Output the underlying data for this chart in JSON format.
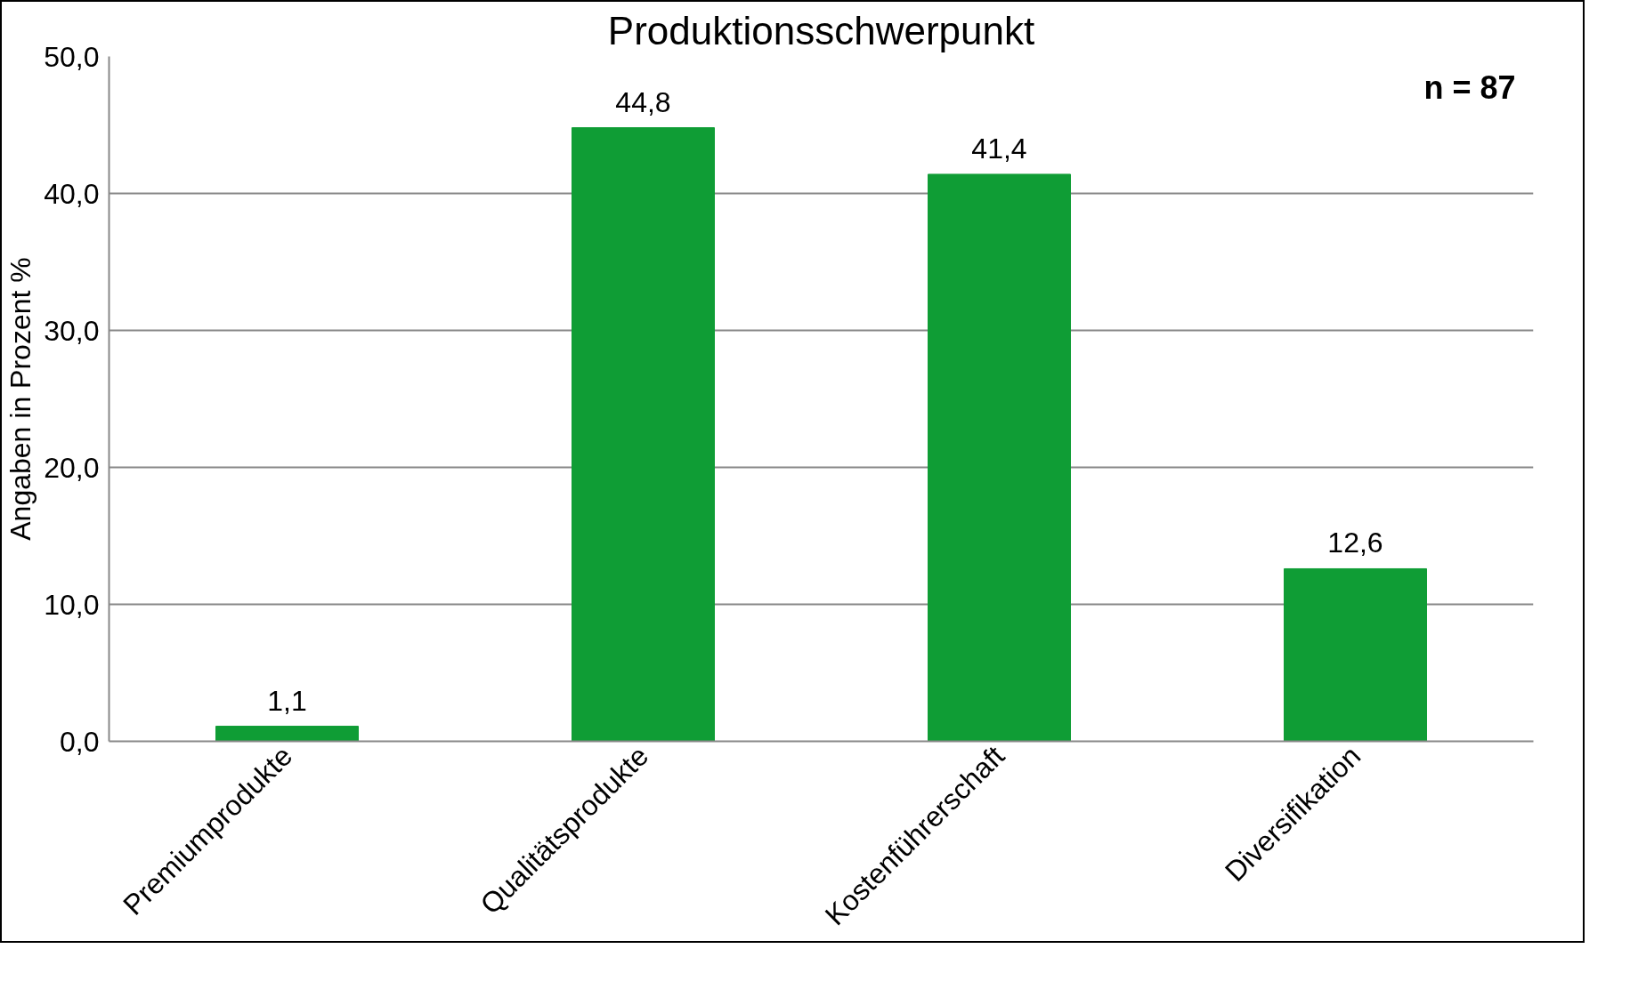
{
  "chart_data": {
    "type": "bar",
    "title": "Produktionsschwerpunkt",
    "ylabel": "Angaben in Prozent %",
    "categories": [
      "Premiumprodukte",
      "Qualitätsprodukte",
      "Kostenführerschaft",
      "Diversifikation"
    ],
    "values": [
      1.1,
      44.8,
      41.4,
      12.6
    ],
    "value_labels": [
      "1,1",
      "44,8",
      "41,4",
      "12,6"
    ],
    "color": "#0f9d35",
    "ylim": [
      0,
      50
    ],
    "yticks": [
      {
        "value": 0,
        "label": "0,0"
      },
      {
        "value": 10,
        "label": "10,0"
      },
      {
        "value": 20,
        "label": "20,0"
      },
      {
        "value": 30,
        "label": "30,0"
      },
      {
        "value": 40,
        "label": "40,0"
      },
      {
        "value": 50,
        "label": "50,0"
      }
    ],
    "grid": "y",
    "annotations": [
      "n = 87"
    ]
  }
}
